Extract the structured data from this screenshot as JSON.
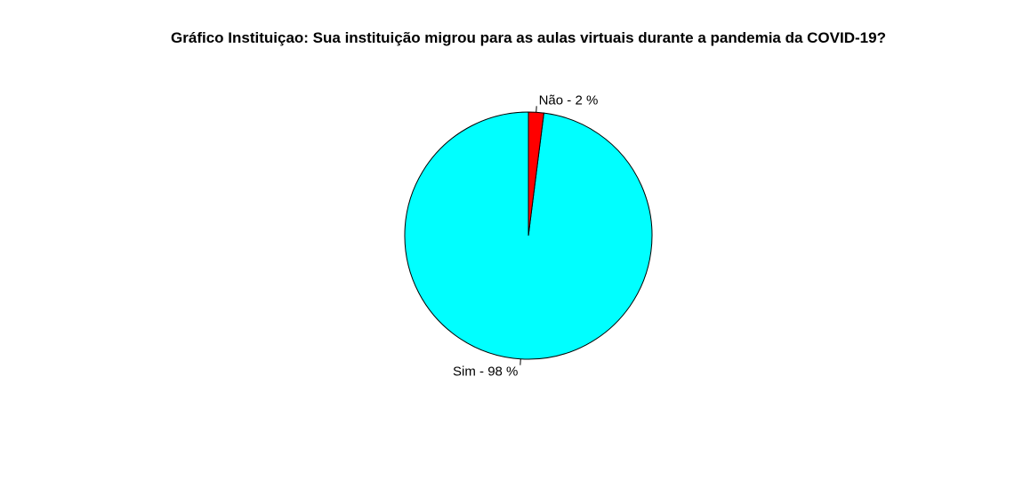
{
  "chart_data": {
    "type": "pie",
    "title": "Gráfico Instituiçao: Sua instituição migrou para as aulas virtuais durante a pandemia da COVID-19?",
    "start": "12 o'clock",
    "direction": "counterclockwise",
    "slices": [
      {
        "label": "Sim - 98 %",
        "category": "Sim",
        "value": 98,
        "color": "#00FFFF"
      },
      {
        "label": "Não - 2 %",
        "category": "Não",
        "value": 2,
        "color": "#FF0000"
      }
    ],
    "border_color": "#000000"
  }
}
